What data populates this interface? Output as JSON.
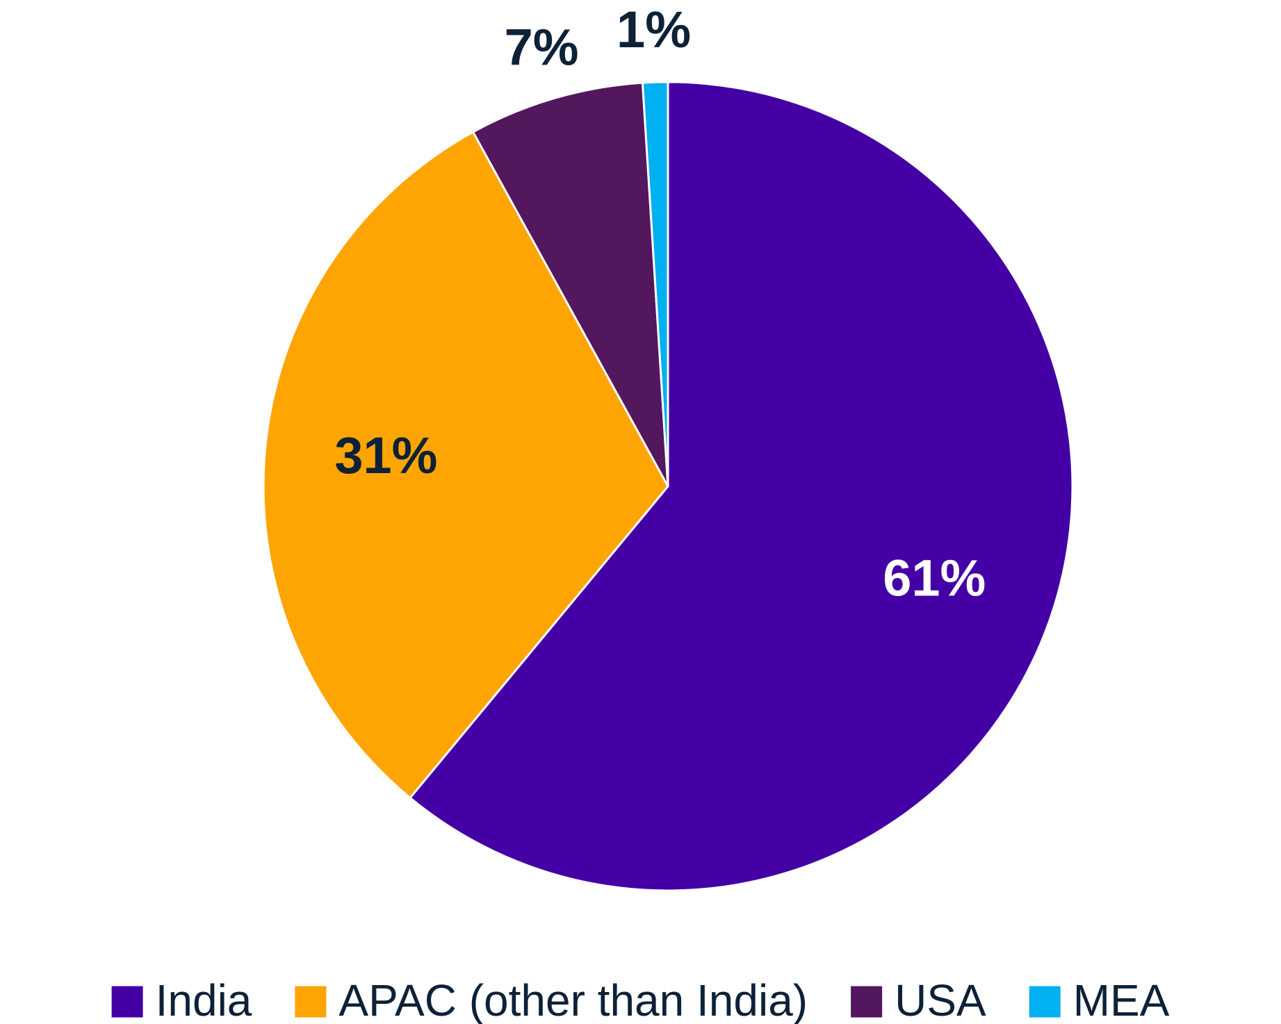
{
  "chart_data": {
    "type": "pie",
    "categories": [
      "India",
      "APAC (other than India)",
      "USA",
      "MEA"
    ],
    "values": [
      61,
      31,
      7,
      1
    ],
    "value_labels": [
      "61%",
      "31%",
      "7%",
      "1%"
    ],
    "colors": [
      "#4400a5",
      "#ffa503",
      "#52175c",
      "#00b0f0"
    ],
    "legend": "bottom"
  }
}
